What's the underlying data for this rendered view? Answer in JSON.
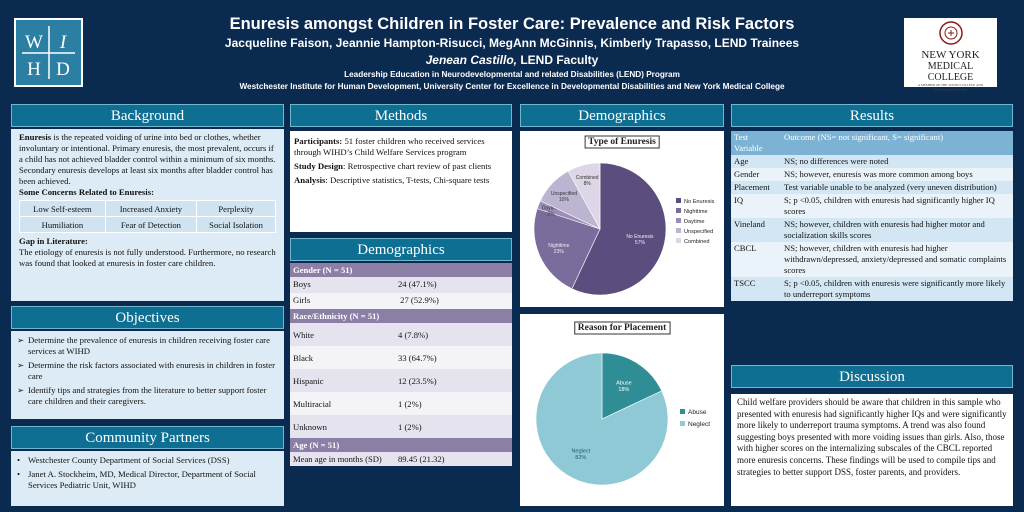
{
  "header": {
    "title": "Enuresis amongst Children in Foster Care: Prevalence and Risk Factors",
    "authors": "Jacqueline Faison, Jeannie Hampton-Risucci, MegAnn McGinnis, Kimberly Trapasso, LEND Trainees",
    "faculty_name": "Jenean Castillo,",
    "faculty_role": " LEND Faculty",
    "program": "Leadership Education in Neurodevelopmental and related Disabilities (LEND) Program",
    "institution": "Westchester Institute for Human Development, University Center for Excellence in Developmental Disabilities and New York Medical College",
    "logo_left": "WIHD",
    "logo_right_line1": "NEW YORK",
    "logo_right_line2": "MEDICAL COLLEGE",
    "logo_right_sub": "A MEMBER OF THE TOURO COLLEGE AND UNIVERSITY SYSTEM"
  },
  "background": {
    "heading": "Background",
    "term": "Enuresis",
    "text": " is the repeated voiding of urine into bed or clothes, whether involuntary or intentional. Primary enuresis, the most prevalent, occurs if a child has not achieved bladder control within a minimum of six months. Secondary enuresis develops at least six months after bladder control has been achieved.",
    "concerns_title": "Some Concerns Related to Enuresis:",
    "concerns": [
      [
        "Low Self-esteem",
        "Increased Anxiety",
        "Perplexity"
      ],
      [
        "Humiliation",
        "Fear of Detection",
        "Social Isolation"
      ]
    ],
    "gap_title": "Gap in Literature:",
    "gap_text": "The etiology of enuresis is not fully understood. Furthermore, no research was found that looked at enuresis in foster care children."
  },
  "objectives": {
    "heading": "Objectives",
    "items": [
      "Determine the prevalence of enuresis in children receiving foster care services at WIHD",
      "Determine the risk factors associated with enuresis in children in foster care",
      "Identify tips and strategies from the literature to  better support foster care children and their caregivers."
    ]
  },
  "community": {
    "heading": "Community Partners",
    "items": [
      "Westchester County Department of Social Services (DSS)",
      "Janet A. Stockheim, MD, Medical Director, Department of Social Services Pediatric Unit, WIHD"
    ]
  },
  "methods": {
    "heading": "Methods",
    "participants_label": "Participants:",
    "participants_text": " 51 foster children who received services through WIHD’s Child Welfare Services program",
    "design_label": "Study Design",
    "design_text": ": Retrospective chart review of past clients",
    "analysis_label": "Analysis",
    "analysis_text": ": Descriptive statistics, T-tests, Chi-square tests"
  },
  "demographics_table": {
    "heading": "Demographics",
    "gender_header": "Gender (N = 51)",
    "gender": [
      [
        "Boys",
        "24 (47.1%)"
      ],
      [
        "Girls",
        " 27 (52.9%)"
      ]
    ],
    "race_header": "Race/Ethnicity (N = 51)",
    "race": [
      [
        "White",
        "4 (7.8%)"
      ],
      [
        "Black",
        "33 (64.7%)"
      ],
      [
        "Hispanic",
        "12 (23.5%)"
      ],
      [
        "Multiracial",
        "1 (2%)"
      ],
      [
        "Unknown",
        "1 (2%)"
      ]
    ],
    "age_header": "Age (N = 51)",
    "age": [
      [
        "Mean age in months (SD)",
        "89.45 (21.32)"
      ]
    ]
  },
  "demographics_charts": {
    "heading": "Demographics"
  },
  "chart_data": [
    {
      "type": "pie",
      "title": "Type of Enuresis",
      "categories": [
        "No Enuresis",
        "Nighttime",
        "Daytime",
        "Unspecified",
        "Combined"
      ],
      "values": [
        57,
        23,
        2,
        10,
        8
      ],
      "labels": [
        "No Enuresis\n57%",
        "Nighttime\n23%",
        "Daytime\n2%",
        "Unspecified\n10%",
        "Combined\n8%"
      ],
      "colors": [
        "#5b4d7e",
        "#7a6d9c",
        "#9a8eb8",
        "#bdb4d2",
        "#dcd6e6"
      ],
      "legend": "right"
    },
    {
      "type": "pie",
      "title": "Reason for Placement",
      "categories": [
        "Abuse",
        "Neglect"
      ],
      "values": [
        18,
        82
      ],
      "labels": [
        "Abuse\n18%",
        "Neglect\n82%"
      ],
      "colors": [
        "#2f8d96",
        "#8fc9d6"
      ],
      "legend": "right"
    }
  ],
  "results": {
    "heading": "Results",
    "col1": "Test Variable",
    "col2": "Outcome (NS= not significant, S= significant)",
    "rows": [
      [
        "Age",
        "NS; no differences were noted"
      ],
      [
        "Gender",
        "NS; however, enuresis was more common among boys"
      ],
      [
        "Placement",
        "Test variable unable to be analyzed (very uneven distribution)"
      ],
      [
        "IQ",
        "S; p <0.05, children with enuresis had significantly higher IQ scores"
      ],
      [
        "Vineland",
        "NS; however, children with enuresis had higher motor and socialization skills scores"
      ],
      [
        "CBCL",
        "NS; however, children with enuresis had higher withdrawn/depressed, anxiety/depressed and somatic complaints scores"
      ],
      [
        "TSCC",
        "S; p <0.05, children with enuresis were significantly more likely to underreport symptoms"
      ]
    ]
  },
  "discussion": {
    "heading": "Discussion",
    "text": "Child welfare providers should be aware that children in this sample who presented with enuresis had significantly higher IQs and were significantly more likely to underreport trauma symptoms. A trend was also found suggesting boys presented with more voiding issues than girls. Also, those with higher scores on the internalizing subscales of the CBCL reported more enuresis concerns. These findings will be used to compile tips and strategies to better support DSS, foster parents, and providers."
  }
}
